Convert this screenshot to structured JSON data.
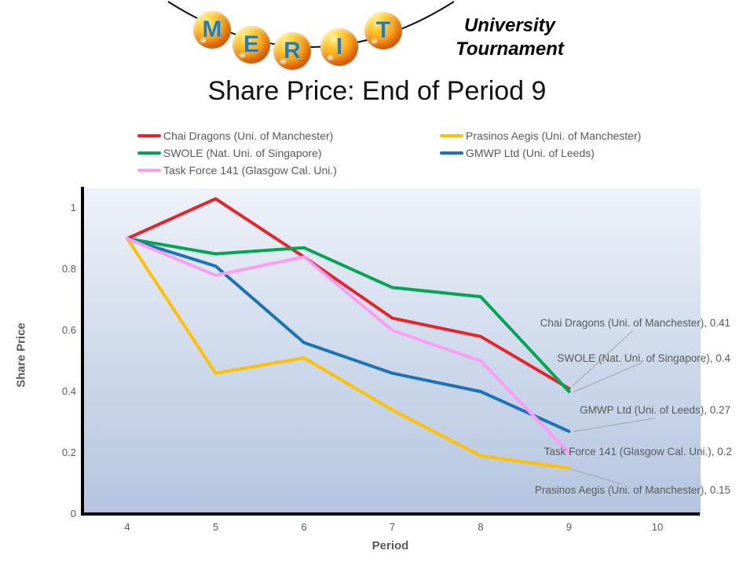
{
  "header": {
    "logo_letters": [
      "M",
      "E",
      "R",
      "I",
      "T"
    ],
    "org_name_line1": "University",
    "org_name_line2": "Tournament"
  },
  "chart_data": {
    "type": "line",
    "title": "Share Price: End of Period 9",
    "xlabel": "Period",
    "ylabel": "Share Price",
    "x": [
      4,
      5,
      6,
      7,
      8,
      9
    ],
    "xlim": [
      4,
      10
    ],
    "ylim": [
      0,
      1
    ],
    "grid": false,
    "legend_position": "top-two-columns",
    "x_ticks": [
      {
        "value": 4,
        "label": "4"
      },
      {
        "value": 5,
        "label": "5"
      },
      {
        "value": 6,
        "label": "6"
      },
      {
        "value": 7,
        "label": "7"
      },
      {
        "value": 8,
        "label": "8"
      },
      {
        "value": 9,
        "label": "9"
      },
      {
        "value": 10,
        "label": "10"
      }
    ],
    "y_ticks": [
      {
        "value": 0,
        "label": "0"
      },
      {
        "value": 0.2,
        "label": "0.2"
      },
      {
        "value": 0.4,
        "label": "0.4"
      },
      {
        "value": 0.6,
        "label": "0.6"
      },
      {
        "value": 0.8,
        "label": "0.8"
      },
      {
        "value": 1,
        "label": "1"
      }
    ],
    "series": [
      {
        "id": "chai-dragons",
        "name": "Chai Dragons (Uni. of Manchester)",
        "color": "#e8232a",
        "values": [
          0.9,
          1.03,
          0.84,
          0.64,
          0.58,
          0.41
        ],
        "end_value": 0.41,
        "end_label": "Chai Dragons (Uni. of Manchester), 0.41"
      },
      {
        "id": "swole",
        "name": "SWOLE (Nat. Uni. of Singapore)",
        "color": "#00a651",
        "values": [
          0.9,
          0.85,
          0.87,
          0.74,
          0.71,
          0.4
        ],
        "end_value": 0.4,
        "end_label": "SWOLE (Nat. Uni. of Singapore), 0.4"
      },
      {
        "id": "gmwp-ltd",
        "name": "GMWP Ltd (Uni. of Leeds)",
        "color": "#1a72b8",
        "values": [
          0.9,
          0.81,
          0.56,
          0.46,
          0.4,
          0.27
        ],
        "end_value": 0.27,
        "end_label": "GMWP Ltd (Uni. of Leeds), 0.27"
      },
      {
        "id": "prasinos-aegis",
        "name": "Prasinos Aegis (Uni. of Manchester)",
        "color": "#ffc000",
        "values": [
          0.9,
          0.46,
          0.51,
          0.34,
          0.19,
          0.15
        ],
        "end_value": 0.15,
        "end_label": "Prasinos Aegis (Uni. of Manchester), 0.15"
      },
      {
        "id": "task-force-141",
        "name": "Task Force 141 (Glasgow Cal. Uni.)",
        "color": "#fb9df3",
        "values": [
          0.9,
          0.78,
          0.84,
          0.6,
          0.5,
          0.2
        ],
        "end_value": 0.2,
        "end_label": "Task Force 141 (Glasgow Cal. Uni.), 0.2"
      }
    ],
    "legend": {
      "left_column": [
        0,
        1,
        4
      ],
      "right_column": [
        3,
        2
      ]
    },
    "colors": {
      "axis": "#000000",
      "tick_label": "#595959",
      "axis_title": "#595959",
      "data_label": "#595959",
      "leader_line": "#a6a6a6",
      "plot_gradient_top": "#eef2f9",
      "plot_gradient_bottom": "#b5c5e0",
      "ball_orange": "#fba81c",
      "ball_letter_blue": "#2f7ba6"
    }
  }
}
